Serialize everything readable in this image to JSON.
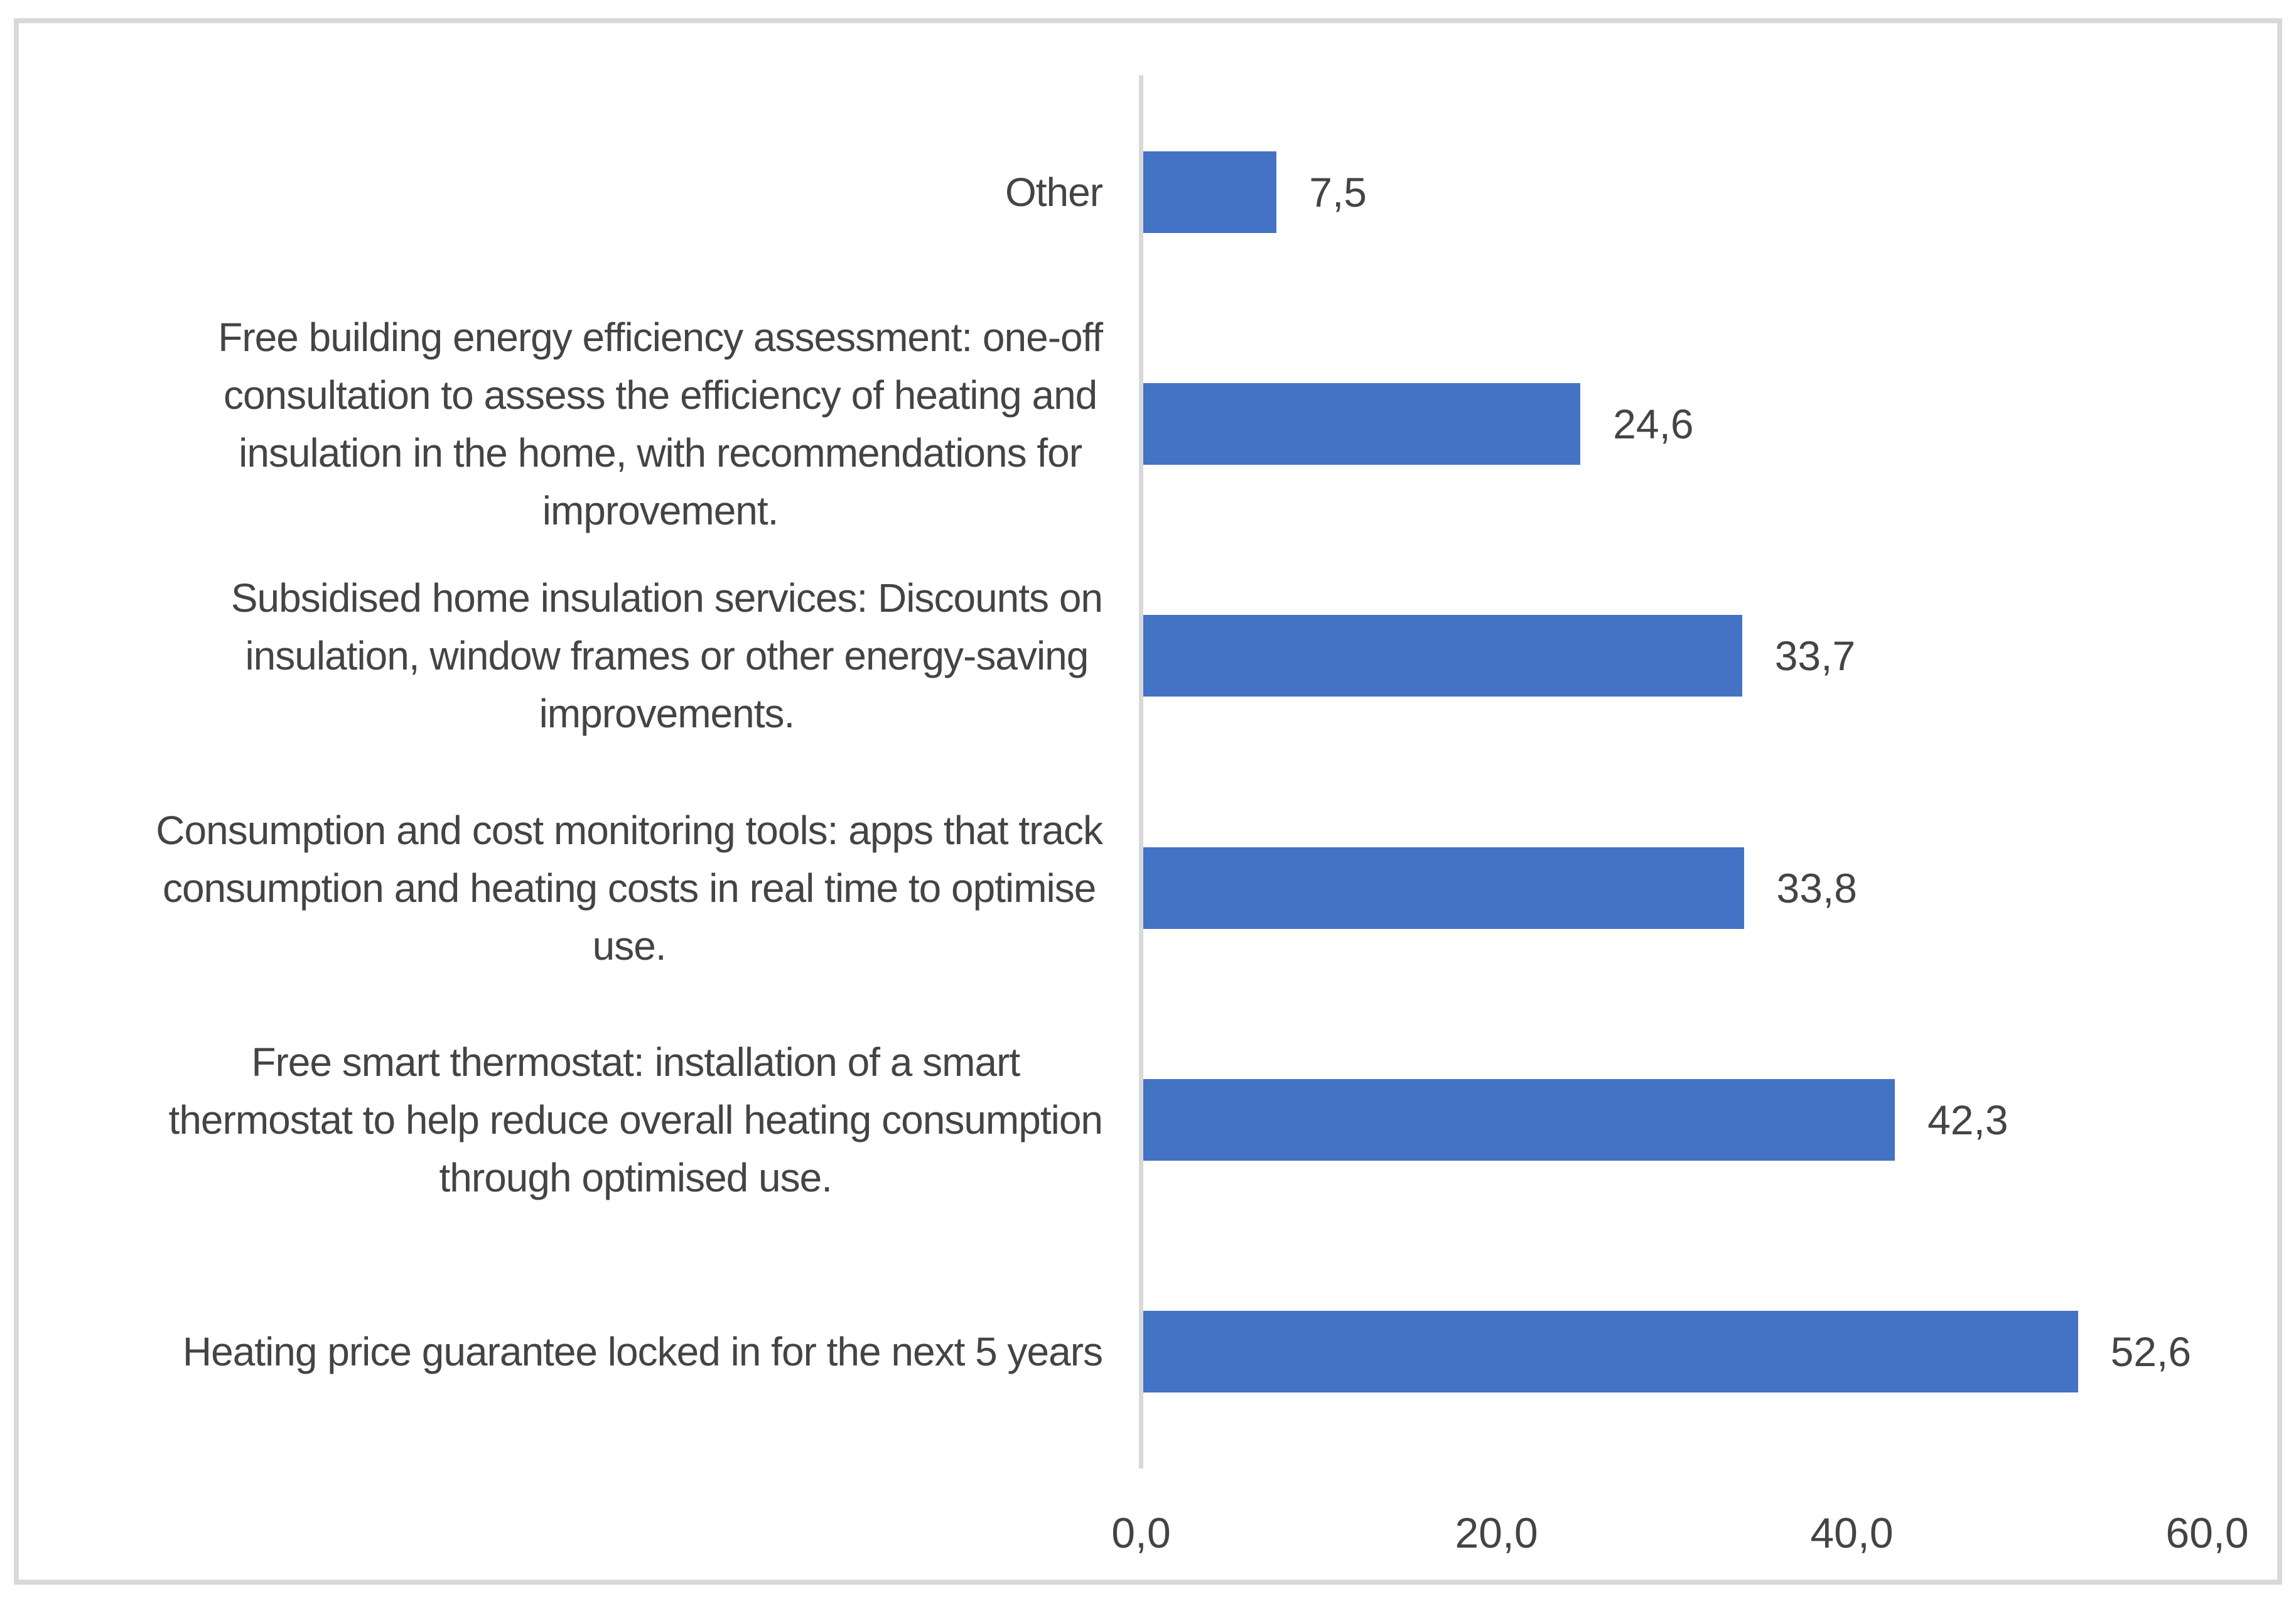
{
  "chart_data": {
    "type": "bar",
    "orientation": "horizontal",
    "title": "",
    "xlabel": "",
    "ylabel": "",
    "categories": [
      "Other",
      "Free building energy efficiency assessment: one-off\nconsultation to assess the efficiency of heating and\ninsulation in the home, with recommendations for\nimprovement.",
      "Subsidised home insulation services: Discounts on\ninsulation, window frames or other energy-saving\nimprovements.",
      "Consumption and cost monitoring tools: apps that track\nconsumption and heating costs in real time to optimise\nuse.",
      "Free smart thermostat: installation of a smart\nthermostat to help reduce overall heating consumption\nthrough optimised use.",
      "Heating price guarantee locked in for the next 5 years"
    ],
    "values": [
      7.5,
      24.6,
      33.7,
      33.8,
      42.3,
      52.6
    ],
    "value_labels": [
      "7,5",
      "24,6",
      "33,7",
      "33,8",
      "42,3",
      "52,6"
    ],
    "xlim": [
      0,
      60
    ],
    "x_ticks": [
      0,
      20,
      40,
      60
    ],
    "x_tick_labels": [
      "0,0",
      "20,0",
      "40,0",
      "60,0"
    ],
    "decimal_separator": ",",
    "grid": false,
    "legend_position": "none",
    "colors": {
      "bar": "#4472C4",
      "axis_line": "#D9D9D9",
      "frame_border": "#D9D9D9",
      "text": "#444444",
      "background": "#FFFFFF"
    }
  }
}
